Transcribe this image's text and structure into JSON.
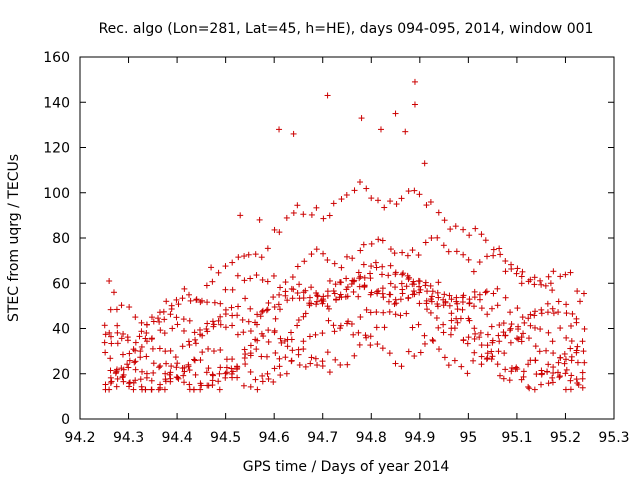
{
  "chart_data": {
    "type": "scatter",
    "title": "Rec. algo (Lon=281, Lat=45, h=HE), days 094-095, 2014, window 001",
    "xlabel": "GPS time / Days of year 2014",
    "ylabel": "STEC from uqrg / TECUs",
    "xlim": [
      94.2,
      95.3
    ],
    "ylim": [
      0,
      160
    ],
    "xticks": [
      "94.2",
      "94.3",
      "94.4",
      "94.5",
      "94.6",
      "94.7",
      "94.8",
      "94.9",
      "95",
      "95.1",
      "95.2",
      "95.3"
    ],
    "yticks": [
      "0",
      "20",
      "40",
      "60",
      "80",
      "100",
      "120",
      "140",
      "160"
    ],
    "grid": false,
    "marker": "plus",
    "color": "#cc0000",
    "series_params": [
      [
        35,
        40,
        60,
        50
      ],
      [
        32,
        25,
        55,
        23
      ],
      [
        28,
        30,
        50,
        0
      ],
      [
        25,
        35,
        40,
        -23
      ],
      [
        22,
        20,
        45,
        45
      ],
      [
        18,
        45,
        30,
        12
      ],
      [
        15,
        50,
        25,
        -10
      ],
      [
        15,
        15,
        35,
        30
      ],
      [
        20,
        80,
        50,
        -18
      ],
      [
        18,
        35,
        20,
        40
      ]
    ],
    "extra_points": [
      {
        "x": 94.71,
        "y": 143
      },
      {
        "x": 94.89,
        "y": 149
      },
      {
        "x": 94.89,
        "y": 139
      },
      {
        "x": 94.61,
        "y": 128
      },
      {
        "x": 94.64,
        "y": 126
      },
      {
        "x": 94.78,
        "y": 133
      },
      {
        "x": 94.82,
        "y": 128
      },
      {
        "x": 94.85,
        "y": 135
      },
      {
        "x": 94.87,
        "y": 127
      },
      {
        "x": 94.91,
        "y": 113
      },
      {
        "x": 94.53,
        "y": 90
      },
      {
        "x": 94.57,
        "y": 88
      },
      {
        "x": 94.26,
        "y": 61
      },
      {
        "x": 94.27,
        "y": 56
      },
      {
        "x": 94.47,
        "y": 67
      },
      {
        "x": 95.11,
        "y": 63
      },
      {
        "x": 95.17,
        "y": 60
      },
      {
        "x": 95.23,
        "y": 52
      }
    ]
  }
}
